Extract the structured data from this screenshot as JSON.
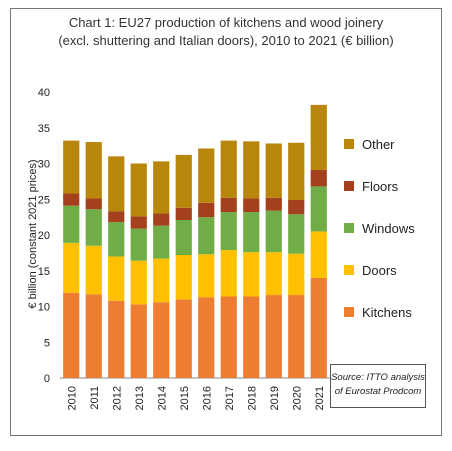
{
  "chart_data": {
    "type": "bar",
    "stacked": true,
    "title": "Chart 1: EU27 production of kitchens and wood joinery",
    "subtitle": "(excl. shuttering and Italian doors), 2010 to 2021 (€ billion)",
    "ylabel": "€ billion (constant 2021 prices)",
    "xlabel": "",
    "ylim": [
      0,
      40
    ],
    "yticks": [
      "0",
      "5",
      "10",
      "15",
      "20",
      "25",
      "30",
      "35",
      "40"
    ],
    "categories": [
      "2010",
      "2011",
      "2012",
      "2013",
      "2014",
      "2015",
      "2016",
      "2017",
      "2018",
      "2019",
      "2020",
      "2021"
    ],
    "series": [
      {
        "name": "Kitchens",
        "color": "#ED7D31",
        "values": [
          11.9,
          11.7,
          10.8,
          10.3,
          10.6,
          11.0,
          11.3,
          11.4,
          11.4,
          11.6,
          11.6,
          14.0
        ]
      },
      {
        "name": "Doors",
        "color": "#FFC000",
        "values": [
          7.0,
          6.8,
          6.2,
          6.1,
          6.1,
          6.2,
          6.0,
          6.5,
          6.2,
          6.0,
          5.8,
          6.5
        ]
      },
      {
        "name": "Windows",
        "color": "#70AD47",
        "values": [
          5.2,
          5.1,
          4.8,
          4.5,
          4.6,
          4.9,
          5.2,
          5.3,
          5.6,
          5.8,
          5.5,
          6.3
        ]
      },
      {
        "name": "Floors",
        "color": "#A5401F",
        "values": [
          1.7,
          1.5,
          1.5,
          1.7,
          1.7,
          1.7,
          2.0,
          2.0,
          1.9,
          1.8,
          2.0,
          2.3
        ]
      },
      {
        "name": "Other",
        "color": "#B8860B",
        "values": [
          7.4,
          7.9,
          7.7,
          7.4,
          7.3,
          7.4,
          7.6,
          8.0,
          8.0,
          7.6,
          8.0,
          9.1
        ]
      }
    ],
    "legend_position": "right",
    "legend_order": [
      "Other",
      "Floors",
      "Windows",
      "Doors",
      "Kitchens"
    ],
    "grid": false
  },
  "source_note": {
    "line1": "Source: ITTO analysis",
    "line2": "of Eurostat Prodcom"
  }
}
